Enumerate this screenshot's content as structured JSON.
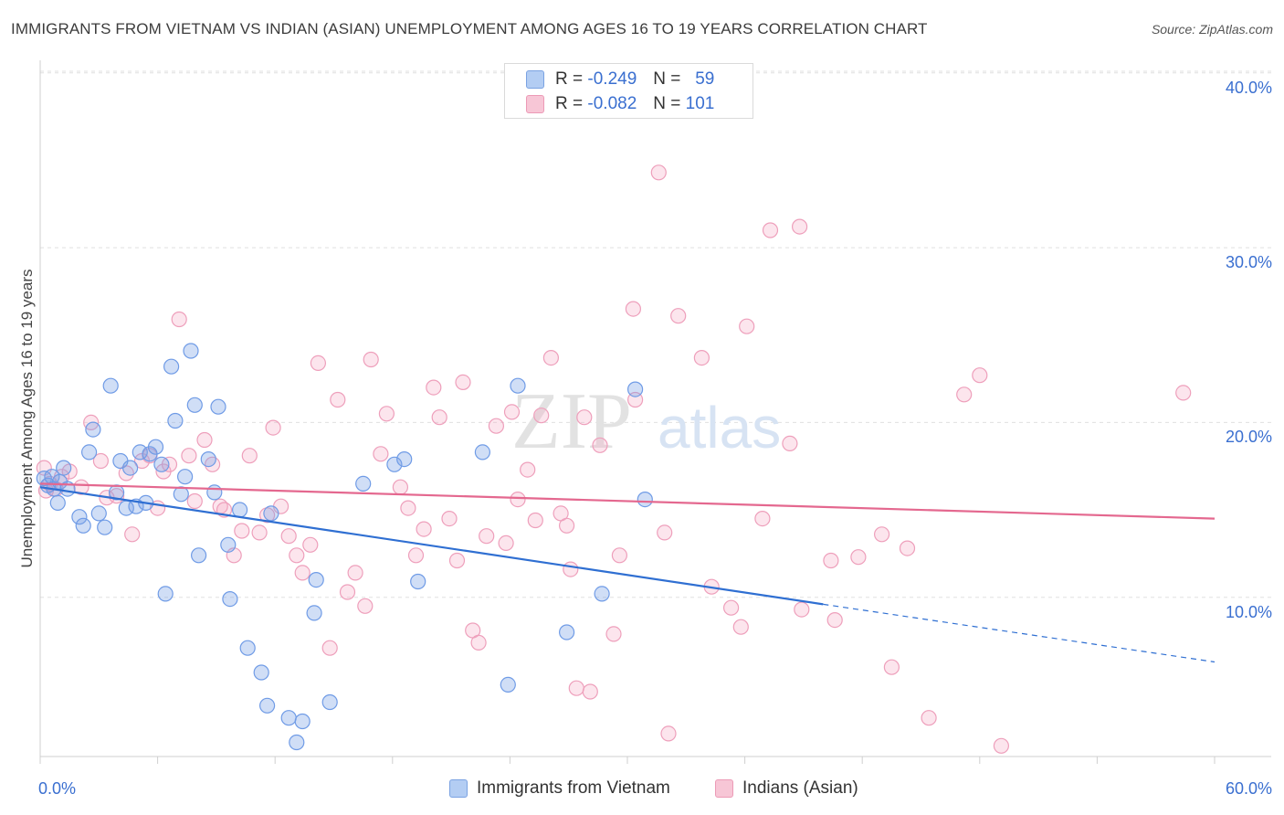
{
  "header": {
    "title": "IMMIGRANTS FROM VIETNAM VS INDIAN (ASIAN) UNEMPLOYMENT AMONG AGES 16 TO 19 YEARS CORRELATION CHART",
    "source": "Source: ZipAtlas.com"
  },
  "legend": {
    "series": [
      {
        "r_label": "R =",
        "r_value": "-0.249",
        "n_label": "N =",
        "n_value": "59"
      },
      {
        "r_label": "R =",
        "r_value": "-0.082",
        "n_label": "N =",
        "n_value": "101"
      }
    ]
  },
  "watermark": {
    "zip": "ZIP",
    "atlas": "atlas"
  },
  "chart_data": {
    "type": "scatter",
    "title": "IMMIGRANTS FROM VIETNAM VS INDIAN (ASIAN) UNEMPLOYMENT AMONG AGES 16 TO 19 YEARS CORRELATION CHART",
    "xlabel": "",
    "ylabel": "Unemployment Among Ages 16 to 19 years",
    "xlim": [
      0,
      60
    ],
    "ylim": [
      0,
      42
    ],
    "x_tick_labels": [
      "0.0%",
      "60.0%"
    ],
    "y_ticks": [
      10,
      20,
      30,
      40
    ],
    "y_tick_labels": [
      "10.0%",
      "20.0%",
      "30.0%",
      "40.0%"
    ],
    "grid": true,
    "legend_position": "bottom",
    "colors": {
      "vietnam": "#6f9be6",
      "indian": "#f0a0bb",
      "vietnam_line": "#2f6fd2",
      "indian_line": "#e4688f"
    },
    "series": [
      {
        "name": "Immigrants from Vietnam",
        "r": -0.249,
        "n": 59,
        "trend": {
          "x0": 0,
          "y0": 16.3,
          "x1": 40,
          "y1": 9.6,
          "dashed_to_x": 60,
          "dashed_to_y": 6.3
        },
        "points": [
          [
            0.2,
            16.8
          ],
          [
            0.4,
            16.4
          ],
          [
            0.6,
            16.9
          ],
          [
            0.7,
            16.2
          ],
          [
            0.9,
            15.4
          ],
          [
            1.0,
            16.6
          ],
          [
            1.2,
            17.4
          ],
          [
            1.4,
            16.2
          ],
          [
            2.0,
            14.6
          ],
          [
            2.2,
            14.1
          ],
          [
            2.5,
            18.3
          ],
          [
            2.7,
            19.6
          ],
          [
            3.0,
            14.8
          ],
          [
            3.3,
            14.0
          ],
          [
            3.6,
            22.1
          ],
          [
            3.9,
            16.0
          ],
          [
            4.1,
            17.8
          ],
          [
            4.4,
            15.1
          ],
          [
            4.6,
            17.4
          ],
          [
            4.9,
            15.2
          ],
          [
            5.1,
            18.3
          ],
          [
            5.4,
            15.4
          ],
          [
            5.6,
            18.2
          ],
          [
            5.9,
            18.6
          ],
          [
            6.2,
            17.6
          ],
          [
            6.4,
            10.2
          ],
          [
            6.7,
            23.2
          ],
          [
            6.9,
            20.1
          ],
          [
            7.2,
            15.9
          ],
          [
            7.4,
            16.9
          ],
          [
            7.7,
            24.1
          ],
          [
            7.9,
            21.0
          ],
          [
            8.1,
            12.4
          ],
          [
            8.6,
            17.9
          ],
          [
            8.9,
            16.0
          ],
          [
            9.1,
            20.9
          ],
          [
            9.6,
            13.0
          ],
          [
            9.7,
            9.9
          ],
          [
            10.2,
            15.0
          ],
          [
            10.6,
            7.1
          ],
          [
            11.3,
            5.7
          ],
          [
            11.6,
            3.8
          ],
          [
            11.8,
            14.8
          ],
          [
            12.7,
            3.1
          ],
          [
            13.4,
            2.9
          ],
          [
            14.0,
            9.1
          ],
          [
            14.1,
            11.0
          ],
          [
            14.8,
            4.0
          ],
          [
            16.5,
            16.5
          ],
          [
            18.1,
            17.6
          ],
          [
            18.6,
            17.9
          ],
          [
            19.3,
            10.9
          ],
          [
            22.6,
            18.3
          ],
          [
            23.9,
            5.0
          ],
          [
            24.4,
            22.1
          ],
          [
            26.9,
            8.0
          ],
          [
            28.7,
            10.2
          ],
          [
            30.4,
            21.9
          ],
          [
            30.9,
            15.6
          ],
          [
            13.1,
            1.7
          ]
        ]
      },
      {
        "name": "Indians (Asian)",
        "r": -0.082,
        "n": 101,
        "trend": {
          "x0": 0,
          "y0": 16.5,
          "x1": 60,
          "y1": 14.5
        },
        "points": [
          [
            0.2,
            17.4
          ],
          [
            0.5,
            16.5
          ],
          [
            0.8,
            16.2
          ],
          [
            1.1,
            16.9
          ],
          [
            1.5,
            17.2
          ],
          [
            2.1,
            16.3
          ],
          [
            2.6,
            20.0
          ],
          [
            3.1,
            17.8
          ],
          [
            3.4,
            15.7
          ],
          [
            3.9,
            15.8
          ],
          [
            4.4,
            17.1
          ],
          [
            4.7,
            13.6
          ],
          [
            5.2,
            17.8
          ],
          [
            5.6,
            18.1
          ],
          [
            6.0,
            15.1
          ],
          [
            6.3,
            17.2
          ],
          [
            6.6,
            17.6
          ],
          [
            7.1,
            25.9
          ],
          [
            7.6,
            18.1
          ],
          [
            7.9,
            15.5
          ],
          [
            8.4,
            19.0
          ],
          [
            8.8,
            17.6
          ],
          [
            9.2,
            15.2
          ],
          [
            9.4,
            15.0
          ],
          [
            9.9,
            12.4
          ],
          [
            10.3,
            13.8
          ],
          [
            10.7,
            18.1
          ],
          [
            11.2,
            13.7
          ],
          [
            11.6,
            14.7
          ],
          [
            11.9,
            19.7
          ],
          [
            12.3,
            15.2
          ],
          [
            12.7,
            13.5
          ],
          [
            13.1,
            12.4
          ],
          [
            13.4,
            11.4
          ],
          [
            13.8,
            13.0
          ],
          [
            14.2,
            23.4
          ],
          [
            14.8,
            7.1
          ],
          [
            15.2,
            21.3
          ],
          [
            15.7,
            10.3
          ],
          [
            16.1,
            11.4
          ],
          [
            16.6,
            9.5
          ],
          [
            16.9,
            23.6
          ],
          [
            17.4,
            18.2
          ],
          [
            17.7,
            20.5
          ],
          [
            18.4,
            16.3
          ],
          [
            18.8,
            15.1
          ],
          [
            19.2,
            12.4
          ],
          [
            19.6,
            13.9
          ],
          [
            20.1,
            22.0
          ],
          [
            20.4,
            20.3
          ],
          [
            20.9,
            14.5
          ],
          [
            21.3,
            12.1
          ],
          [
            21.6,
            22.3
          ],
          [
            22.1,
            8.1
          ],
          [
            22.4,
            7.4
          ],
          [
            22.8,
            13.5
          ],
          [
            23.3,
            19.8
          ],
          [
            23.8,
            13.1
          ],
          [
            24.1,
            20.6
          ],
          [
            24.4,
            15.6
          ],
          [
            24.9,
            17.3
          ],
          [
            25.3,
            14.4
          ],
          [
            25.6,
            20.4
          ],
          [
            26.1,
            23.7
          ],
          [
            26.6,
            14.8
          ],
          [
            26.9,
            14.1
          ],
          [
            27.1,
            11.6
          ],
          [
            27.4,
            4.8
          ],
          [
            27.8,
            20.3
          ],
          [
            28.1,
            4.6
          ],
          [
            28.6,
            18.7
          ],
          [
            29.3,
            7.9
          ],
          [
            29.6,
            12.4
          ],
          [
            30.4,
            21.3
          ],
          [
            30.3,
            26.5
          ],
          [
            31.6,
            34.3
          ],
          [
            31.9,
            13.7
          ],
          [
            32.1,
            2.2
          ],
          [
            32.6,
            26.1
          ],
          [
            33.8,
            23.7
          ],
          [
            34.3,
            10.6
          ],
          [
            35.3,
            9.4
          ],
          [
            35.8,
            8.3
          ],
          [
            36.1,
            25.5
          ],
          [
            36.9,
            14.5
          ],
          [
            37.3,
            31.0
          ],
          [
            38.3,
            18.8
          ],
          [
            38.8,
            31.2
          ],
          [
            38.9,
            9.3
          ],
          [
            40.4,
            12.1
          ],
          [
            40.6,
            8.7
          ],
          [
            41.8,
            12.3
          ],
          [
            43.0,
            13.6
          ],
          [
            43.5,
            6.0
          ],
          [
            44.3,
            12.8
          ],
          [
            45.4,
            3.1
          ],
          [
            47.2,
            21.6
          ],
          [
            48.0,
            22.7
          ],
          [
            49.1,
            1.5
          ],
          [
            58.4,
            21.7
          ],
          [
            0.3,
            16.1
          ]
        ]
      }
    ]
  }
}
